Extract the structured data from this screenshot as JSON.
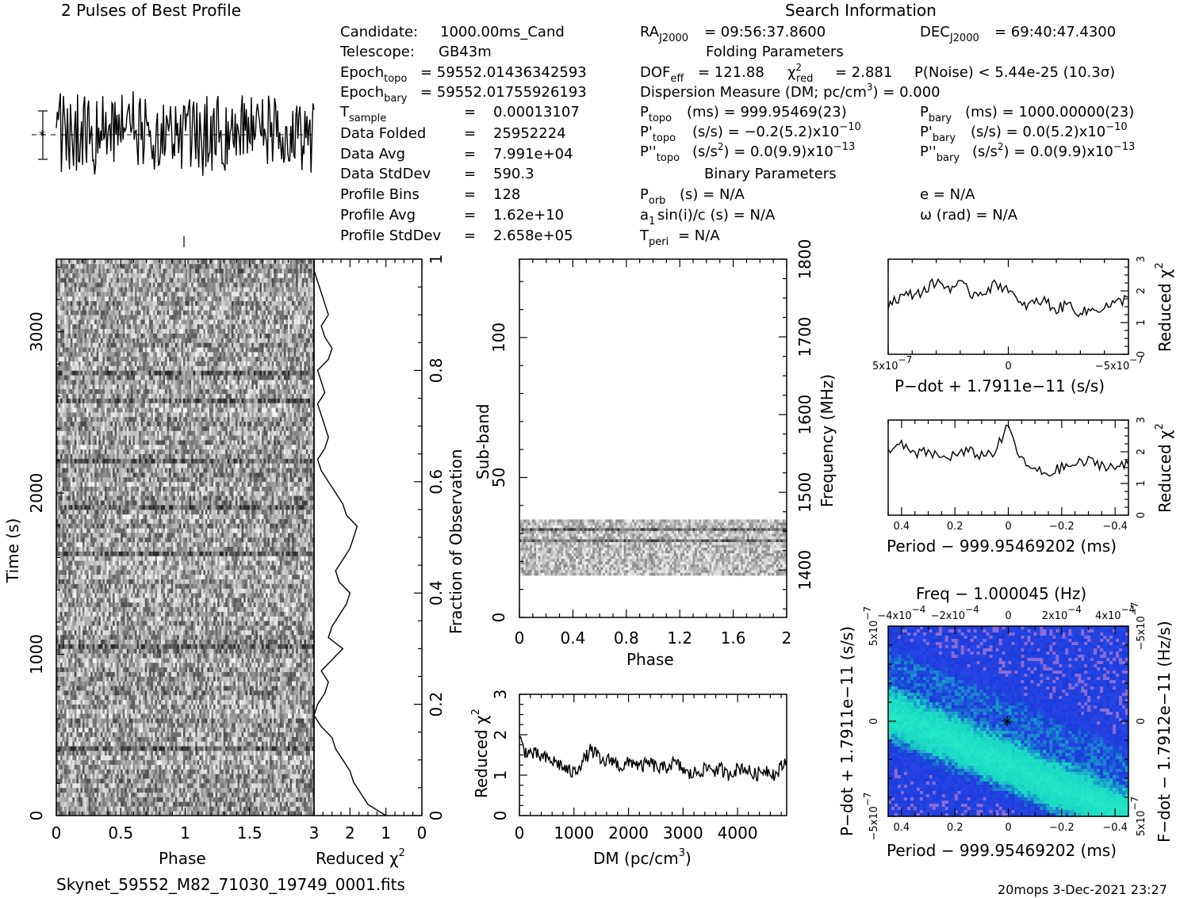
{
  "titles": {
    "profile": "2 Pulses of Best Profile",
    "search": "Search Information",
    "folding": "Folding Parameters",
    "binary": "Binary Parameters"
  },
  "info_left": [
    {
      "label": "Candidate:",
      "value": "1000.00ms_Cand"
    },
    {
      "label": "Telescope:",
      "value": "GB43m"
    },
    {
      "label": "Epoch",
      "sub": "topo",
      "value": "= 59552.01436342593"
    },
    {
      "label": "Epoch",
      "sub": "bary",
      "value": "= 59552.01755926193"
    },
    {
      "label": "T",
      "sub": "sample",
      "value": "0.00013107"
    },
    {
      "label": "Data Folded",
      "value": "25952224"
    },
    {
      "label": "Data Avg",
      "value": "7.991e+04"
    },
    {
      "label": "Data StdDev",
      "value": "590.3"
    },
    {
      "label": "Profile Bins",
      "value": "128"
    },
    {
      "label": "Profile Avg",
      "value": "1.62e+10"
    },
    {
      "label": "Profile StdDev",
      "value": "2.658e+05"
    }
  ],
  "info_right": {
    "ra": {
      "label": "RA",
      "sub": "J2000",
      "value": "= 09:56:37.8600"
    },
    "dec": {
      "label": "DEC",
      "sub": "J2000",
      "value": "= 69:40:47.4300"
    },
    "dof": {
      "label": "DOF",
      "sub": "eff",
      "value": "= 121.88"
    },
    "chi": {
      "label": "χ",
      "sup": "2",
      "sub": "red",
      "value": "= 2.881"
    },
    "pnoise": "P(Noise) < 5.44e-25   (10.3σ)",
    "dm": {
      "text": "Dispersion Measure (DM; pc/cm",
      "sup": "3",
      "tail": ") = 0.000"
    },
    "ptopo": {
      "label": "P",
      "sub": "topo",
      "value": "(ms) =  999.95469(23)"
    },
    "pbary": {
      "label": "P",
      "sub": "bary",
      "value": "(ms) =  1000.00000(23)"
    },
    "pdtopo": {
      "label": "P'",
      "sub": "topo",
      "value": "(s/s) = −0.2(5.2)x10",
      "sup": "−10"
    },
    "pdbary": {
      "label": "P'",
      "sub": "bary",
      "value": "(s/s) = 0.0(5.2)x10",
      "sup": "−10"
    },
    "pddtopo": {
      "label": "P''",
      "sub": "topo",
      "value": "(s/s",
      "sup2": "2",
      "tail": ") = 0.0(9.9)x10",
      "sup": "−13"
    },
    "pddbary": {
      "label": "P''",
      "sub": "bary",
      "value": "(s/s",
      "sup2": "2",
      "tail": ") = 0.0(9.9)x10",
      "sup": "−13"
    },
    "porb": {
      "label": "P",
      "sub": "orb",
      "value": "(s) = N/A"
    },
    "ecc": "e = N/A",
    "a1": {
      "label": "a",
      "sub": "1",
      "value": "sin(i)/c (s) = N/A"
    },
    "omega": "ω (rad) = N/A",
    "tperi": {
      "label": "T",
      "sub": "peri",
      "value": "= N/A"
    }
  },
  "footer": {
    "filename": "Skynet_59552_M82_71030_19749_0001.fits",
    "stamp": "20mops   3-Dec-2021 23:27"
  },
  "colors": {
    "axis": "#000000",
    "bg": "#ffffff",
    "ppdot_low": "#1a3bd9",
    "ppdot_mid": "#19d6c4",
    "ppdot_high": "#d48ad0"
  },
  "chart_data": [
    {
      "id": "time-phase",
      "type": "heatmap",
      "xlabel": "Phase",
      "ylabel": "Time (s)",
      "xlim": [
        0,
        2
      ],
      "ylim": [
        0,
        3450
      ],
      "xticks": [
        "0",
        "0.5",
        "1",
        "1.5"
      ],
      "yticks": [
        "0",
        "1000",
        "2000",
        "3000"
      ],
      "right_ylabel": "Fraction of Observation",
      "right_yticks": [
        "0",
        "0.2",
        "0.4",
        "0.6",
        "0.8",
        "1"
      ],
      "ylim_right": [
        0,
        1
      ]
    },
    {
      "id": "reduced-chi-vs-time",
      "type": "line",
      "xlabel": "Reduced χ",
      "xlabel_sup": "2",
      "xlim": [
        3,
        0
      ],
      "xticks": [
        "3",
        "2",
        "1",
        "0"
      ],
      "fraction": [
        0.0,
        0.02,
        0.04,
        0.06,
        0.08,
        0.1,
        0.12,
        0.14,
        0.16,
        0.18,
        0.2,
        0.22,
        0.24,
        0.26,
        0.28,
        0.3,
        0.32,
        0.34,
        0.36,
        0.38,
        0.4,
        0.42,
        0.44,
        0.46,
        0.48,
        0.5,
        0.52,
        0.54,
        0.56,
        0.58,
        0.6,
        0.62,
        0.64,
        0.66,
        0.68,
        0.7,
        0.72,
        0.74,
        0.76,
        0.78,
        0.8,
        0.82,
        0.84,
        0.86,
        0.88,
        0.9,
        0.92,
        0.94,
        0.96,
        0.98,
        1.0
      ],
      "chi2": [
        1.0,
        1.5,
        1.7,
        1.9,
        2.0,
        2.2,
        2.4,
        2.5,
        2.8,
        3.0,
        2.9,
        2.7,
        2.6,
        2.8,
        2.5,
        2.2,
        2.6,
        2.5,
        2.3,
        2.1,
        2.0,
        2.3,
        2.4,
        2.2,
        2.0,
        1.9,
        1.8,
        2.1,
        2.2,
        2.4,
        2.6,
        2.8,
        2.9,
        2.7,
        2.6,
        2.7,
        2.8,
        2.9,
        2.7,
        2.8,
        2.9,
        2.6,
        2.5,
        2.7,
        2.8,
        2.6,
        2.7,
        2.8,
        2.9,
        3.0,
        3.0
      ]
    },
    {
      "id": "pulse-profile",
      "type": "line",
      "title": "2 Pulses of Best Profile",
      "xlim": [
        0,
        2
      ],
      "ylim": [
        -3,
        3
      ],
      "errorbar": 1
    },
    {
      "id": "subband-phase",
      "type": "heatmap",
      "xlabel": "Phase",
      "ylabel": "Sub-band",
      "right_ylabel": "Frequency (MHz)",
      "xlim": [
        0,
        2
      ],
      "ylim": [
        0,
        128
      ],
      "xticks": [
        "0",
        "0.4",
        "0.8",
        "1.2",
        "1.6",
        "2"
      ],
      "yticks": [
        "0",
        "50",
        "100"
      ],
      "right_yticks": [
        "1400",
        "1500",
        "1600",
        "1700",
        "1800"
      ],
      "freq_lim": [
        1339,
        1800
      ],
      "occupied_subbands": [
        15,
        35
      ]
    },
    {
      "id": "dm-chi",
      "type": "line",
      "xlabel": "DM (pc/cm",
      "xlabel_sup": "3",
      "xlabel_tail": ")",
      "ylabel": "Reduced χ",
      "ylabel_sup": "2",
      "xlim": [
        0,
        4900
      ],
      "ylim": [
        0,
        3
      ],
      "xticks": [
        "0",
        "1000",
        "2000",
        "3000",
        "4000"
      ],
      "yticks": [
        "0",
        "1",
        "2",
        "3"
      ],
      "x": [
        0,
        100,
        200,
        300,
        400,
        500,
        600,
        700,
        800,
        900,
        1000,
        1100,
        1200,
        1300,
        1400,
        1500,
        1600,
        1700,
        1800,
        1900,
        2000,
        2100,
        2200,
        2300,
        2400,
        2500,
        2600,
        2700,
        2800,
        2900,
        3000,
        3100,
        3200,
        3300,
        3400,
        3500,
        3600,
        3700,
        3800,
        3900,
        4000,
        4100,
        4200,
        4300,
        4400,
        4500,
        4600,
        4700,
        4800,
        4900
      ],
      "y": [
        1.9,
        1.6,
        1.55,
        1.5,
        1.45,
        1.4,
        1.35,
        1.3,
        1.2,
        1.1,
        1.05,
        1.25,
        1.4,
        1.6,
        1.55,
        1.3,
        1.35,
        1.4,
        1.25,
        1.2,
        1.3,
        1.35,
        1.2,
        1.25,
        1.3,
        1.2,
        1.15,
        1.2,
        1.3,
        1.25,
        1.15,
        1.0,
        1.05,
        1.1,
        1.15,
        1.2,
        1.1,
        1.15,
        1.0,
        1.1,
        1.15,
        1.2,
        1.1,
        1.0,
        1.05,
        1.15,
        1.1,
        1.0,
        1.2,
        1.35
      ]
    },
    {
      "id": "pdot-chi",
      "type": "line",
      "xlabel": "P−dot + 1.7911e−11 (s/s)",
      "ylabel": "Reduced χ",
      "ylabel_sup": "2",
      "xlim": [
        5e-07,
        -5e-07
      ],
      "ylim": [
        0,
        3
      ],
      "xticks": [
        "5x10",
        "0",
        "−5x10"
      ],
      "xtick_sup": "−7",
      "yticks": [
        "0",
        "1",
        "2",
        "3"
      ],
      "x": [
        5e-07,
        4.5e-07,
        4e-07,
        3.5e-07,
        3e-07,
        2.5e-07,
        2e-07,
        1.5e-07,
        1e-07,
        5e-08,
        0,
        -5e-08,
        -1e-07,
        -1.5e-07,
        -2e-07,
        -2.5e-07,
        -3e-07,
        -3.5e-07,
        -4e-07,
        -4.5e-07,
        -5e-07
      ],
      "y": [
        1.6,
        1.8,
        1.9,
        2.0,
        2.3,
        2.1,
        2.2,
        1.9,
        2.0,
        2.2,
        2.1,
        1.5,
        1.6,
        1.7,
        1.4,
        1.6,
        1.3,
        1.4,
        1.5,
        1.6,
        1.8
      ]
    },
    {
      "id": "period-chi",
      "type": "line",
      "xlabel": "Period − 999.95469202 (ms)",
      "ylabel": "Reduced χ",
      "ylabel_sup": "2",
      "xlim": [
        0.45,
        -0.45
      ],
      "ylim": [
        0,
        3
      ],
      "xticks": [
        "0.4",
        "0.2",
        "0",
        "−0.2",
        "−0.4"
      ],
      "yticks": [
        "0",
        "1",
        "2",
        "3"
      ],
      "x": [
        0.45,
        0.4,
        0.35,
        0.3,
        0.25,
        0.2,
        0.15,
        0.1,
        0.05,
        0.0,
        -0.05,
        -0.1,
        -0.15,
        -0.2,
        -0.25,
        -0.3,
        -0.35,
        -0.4,
        -0.45
      ],
      "y": [
        2.1,
        2.2,
        1.9,
        2.0,
        1.8,
        1.9,
        2.0,
        1.9,
        2.0,
        2.8,
        1.7,
        1.4,
        1.3,
        1.5,
        1.6,
        1.7,
        1.6,
        1.5,
        1.6
      ]
    },
    {
      "id": "p-pdot",
      "type": "heatmap",
      "title": "Freq − 1.000045 (Hz)",
      "xlabel": "Period − 999.95469202 (ms)",
      "ylabel": "P−dot + 1.7911e−11 (s/s)",
      "right_ylabel": "F−dot − 1.7912e−11 (Hz/s)",
      "xlim": [
        0.45,
        -0.45
      ],
      "ylim": [
        5e-07,
        -5e-07
      ],
      "xticks": [
        "0.4",
        "0.2",
        "0",
        "−0.2",
        "−0.4"
      ],
      "top_xticks": [
        "−4x10",
        "−2x10",
        "0",
        "2x10",
        "4x10"
      ],
      "top_xtick_sup": "−4",
      "yticks": [
        "−5x10",
        "0",
        "5x10"
      ],
      "ytick_sup": "−7",
      "right_yticks": [
        "5x10",
        "0",
        "−5x10"
      ],
      "right_ytick_sup": "−7",
      "best": [
        0,
        0
      ]
    }
  ]
}
